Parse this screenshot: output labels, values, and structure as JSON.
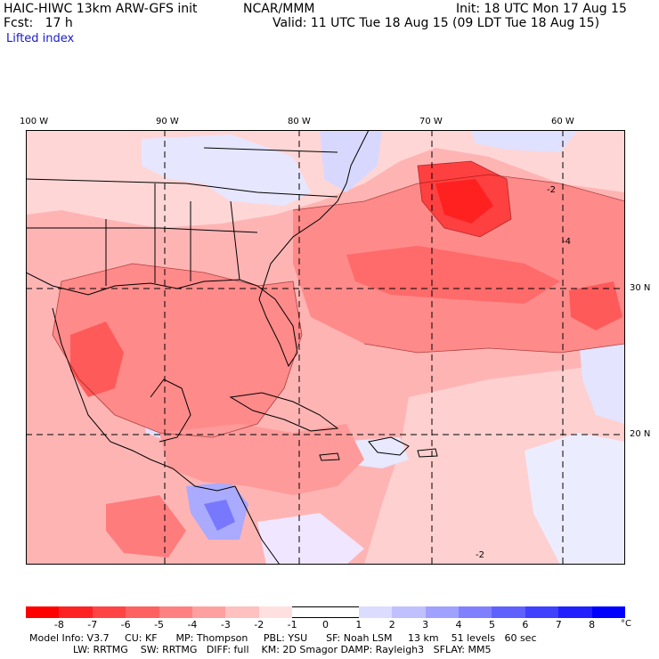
{
  "header": {
    "model_line": "HAIC-HIWC 13km ARW-GFS init",
    "org": "NCAR/MMM",
    "forecast": "Fcst:   17 h",
    "init": "Init: 18 UTC Mon 17 Aug 15",
    "valid": "Valid: 11 UTC Tue 18 Aug 15 (09 LDT Tue 18 Aug 15)",
    "field": "Lifted index"
  },
  "map": {
    "lon_labels": [
      "100 W",
      "90 W",
      "80 W",
      "70 W",
      "60 W"
    ],
    "lat_labels": [
      "30 N",
      "20 N"
    ],
    "contour_labels": [
      "-2",
      "-4",
      "-2"
    ]
  },
  "colorbar": {
    "labels": [
      "-8",
      "-7",
      "-6",
      "-5",
      "-4",
      "-3",
      "-2",
      "-1",
      "0",
      "1",
      "2",
      "3",
      "4",
      "5",
      "6",
      "7",
      "8"
    ],
    "unit": "°C",
    "colors": [
      "#ff0000",
      "#ff2222",
      "#ff4444",
      "#ff6060",
      "#ff8080",
      "#ffa0a0",
      "#ffc0c0",
      "#ffe0e0",
      "#ffffff",
      "#ffffff",
      "#dcdcff",
      "#c0c0ff",
      "#a0a0ff",
      "#8080ff",
      "#6060ff",
      "#4040ff",
      "#2020ff",
      "#0000ff"
    ]
  },
  "footer": {
    "line1": "Model Info: V3.7     CU: KF      MP: Thompson     PBL: YSU      SF: Noah LSM     13 km    51 levels   60 sec",
    "line2": "              LW: RRTMG    SW: RRTMG   DIFF: full    KM: 2D Smagor DAMP: Rayleigh3   SFLAY: MM5"
  }
}
